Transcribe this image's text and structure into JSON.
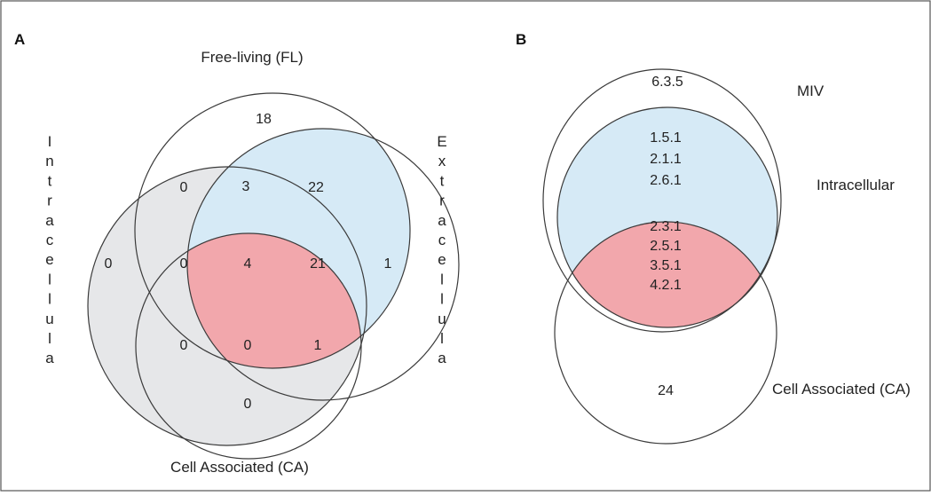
{
  "panel_a": {
    "letter": "A",
    "top_label": "Free-living (FL)",
    "bottom_label": "Cell Associated (CA)",
    "left_vertical": [
      "I",
      "n",
      "t",
      "r",
      "a",
      "c",
      "e",
      "l",
      "l",
      "u",
      "l",
      "a"
    ],
    "right_vertical": [
      "E",
      "x",
      "t",
      "r",
      "a",
      "c",
      "e",
      "l",
      "l",
      "u",
      "l",
      "a"
    ],
    "regions": {
      "fl_only": "18",
      "intra_fl": "0",
      "fl_extra": "3",
      "extra_fl_right": "22",
      "intra_only": "0",
      "intra_fl_ca": "0",
      "center": "4",
      "extra_ca_fl": "21",
      "extra_only": "1",
      "intra_ca": "0",
      "intra_ca_extra": "0",
      "ca_extra": "1",
      "ca_only": "0"
    },
    "colors": {
      "intracellular_fill": "#e6e7e9",
      "fl_extra_fill": "#d6eaf6",
      "center_fill": "#f2a7ac"
    }
  },
  "panel_b": {
    "letter": "B",
    "label_miv": "MIV",
    "label_intracellular": "Intracellular",
    "label_ca": "Cell Associated (CA)",
    "miv_only": "6.3.5",
    "intra_lines": [
      "1.5.1",
      "2.1.1",
      "2.6.1"
    ],
    "overlap_lines": [
      "2.3.1",
      "2.5.1",
      "3.5.1",
      "4.2.1"
    ],
    "ca_only": "24",
    "colors": {
      "intra_fill": "#d6eaf6",
      "overlap_fill": "#f2a7ac"
    }
  }
}
